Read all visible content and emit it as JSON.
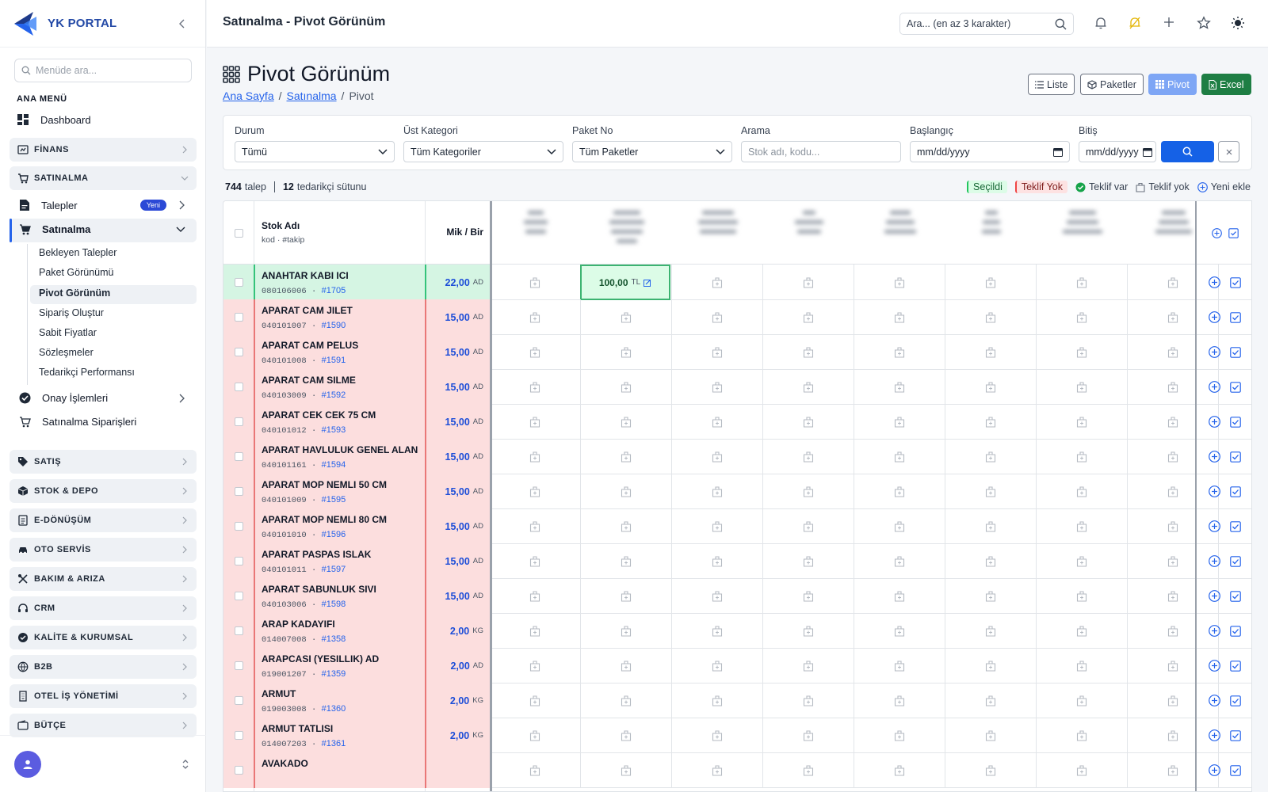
{
  "app": {
    "name": "YK PORTAL",
    "page_title": "Satınalma - Pivot Görünüm"
  },
  "sidebar": {
    "search_placeholder": "Menüde ara...",
    "menu_heading": "ANA MENÜ",
    "dashboard": "Dashboard",
    "sections": [
      {
        "label": "FİNANS",
        "icon": "finance-icon"
      },
      {
        "label": "SATINALMA",
        "icon": "cart-icon",
        "expanded": true
      },
      {
        "label": "SATIŞ",
        "icon": "tag-icon"
      },
      {
        "label": "STOK & DEPO",
        "icon": "box-icon"
      },
      {
        "label": "E-DÖNÜŞÜM",
        "icon": "document-icon"
      },
      {
        "label": "OTO SERVİS",
        "icon": "car-icon"
      },
      {
        "label": "BAKIM & ARIZA",
        "icon": "tools-icon"
      },
      {
        "label": "CRM",
        "icon": "headset-icon"
      },
      {
        "label": "KALİTE & KURUMSAL",
        "icon": "quality-icon"
      },
      {
        "label": "B2B",
        "icon": "globe-icon"
      },
      {
        "label": "OTEL İŞ YÖNETİMİ",
        "icon": "building-icon"
      },
      {
        "label": "BÜTÇE",
        "icon": "wallet-icon"
      }
    ],
    "satinalma": {
      "talepler": "Talepler",
      "talepler_badge": "Yeni",
      "satinalma": "Satınalma",
      "children": [
        "Bekleyen Talepler",
        "Paket Görünümü",
        "Pivot Görünüm",
        "Sipariş Oluştur",
        "Sabit Fiyatlar",
        "Sözleşmeler",
        "Tedarikçi Performansı"
      ],
      "onay": "Onay İşlemleri",
      "siparisler": "Satınalma Siparişleri"
    }
  },
  "topbar": {
    "search_placeholder": "Ara... (en az 3 karakter)"
  },
  "page": {
    "title": "Pivot Görünüm",
    "breadcrumb": [
      "Ana Sayfa",
      "Satınalma",
      "Pivot"
    ],
    "view_buttons": {
      "list": "Liste",
      "packages": "Paketler",
      "pivot": "Pivot",
      "excel": "Excel"
    }
  },
  "filters": {
    "status": {
      "label": "Durum",
      "value": "Tümü"
    },
    "category": {
      "label": "Üst Kategori",
      "value": "Tüm Kategoriler"
    },
    "package": {
      "label": "Paket No",
      "value": "Tüm Paketler"
    },
    "search": {
      "label": "Arama",
      "placeholder": "Stok adı, kodu..."
    },
    "start": {
      "label": "Başlangıç",
      "value": "mm/dd/yyyy"
    },
    "end": {
      "label": "Bitiş",
      "value": "mm/dd/yyyy"
    }
  },
  "summary": {
    "requests": "744",
    "requests_label": "talep",
    "suppliers": "12",
    "suppliers_label": "tedarikçi sütunu"
  },
  "legend": {
    "selected": "Seçildi",
    "no_offer_pill": "Teklif Yok",
    "has_offer": "Teklif var",
    "no_offer": "Teklif yok",
    "add_new": "Yeni ekle"
  },
  "grid": {
    "header": {
      "name": "Stok Adı",
      "name_sub": "kod · #takip",
      "qty": "Mik / Bir"
    },
    "offer": {
      "value": "100,00",
      "currency": "TL"
    },
    "rows": [
      {
        "name": "ANAHTAR KABI ICI",
        "code": "080106006",
        "track": "#1705",
        "qty": "22,00",
        "unit": "AD",
        "state": "selected"
      },
      {
        "name": "APARAT CAM JILET",
        "code": "040101007",
        "track": "#1590",
        "qty": "15,00",
        "unit": "AD",
        "state": "none"
      },
      {
        "name": "APARAT CAM PELUS",
        "code": "040101008",
        "track": "#1591",
        "qty": "15,00",
        "unit": "AD",
        "state": "none"
      },
      {
        "name": "APARAT CAM SILME",
        "code": "040103009",
        "track": "#1592",
        "qty": "15,00",
        "unit": "AD",
        "state": "none"
      },
      {
        "name": "APARAT CEK CEK 75 CM",
        "code": "040101012",
        "track": "#1593",
        "qty": "15,00",
        "unit": "AD",
        "state": "none"
      },
      {
        "name": "APARAT HAVLULUK GENEL ALAN",
        "code": "040101161",
        "track": "#1594",
        "qty": "15,00",
        "unit": "AD",
        "state": "none"
      },
      {
        "name": "APARAT MOP NEMLI 50 CM",
        "code": "040101009",
        "track": "#1595",
        "qty": "15,00",
        "unit": "AD",
        "state": "none"
      },
      {
        "name": "APARAT MOP NEMLI 80 CM",
        "code": "040101010",
        "track": "#1596",
        "qty": "15,00",
        "unit": "AD",
        "state": "none"
      },
      {
        "name": "APARAT PASPAS ISLAK",
        "code": "040101011",
        "track": "#1597",
        "qty": "15,00",
        "unit": "AD",
        "state": "none"
      },
      {
        "name": "APARAT SABUNLUK SIVI",
        "code": "040103006",
        "track": "#1598",
        "qty": "15,00",
        "unit": "AD",
        "state": "none"
      },
      {
        "name": "ARAP KADAYIFI",
        "code": "014007008",
        "track": "#1358",
        "qty": "2,00",
        "unit": "KG",
        "state": "none"
      },
      {
        "name": "ARAPCASI (YESILLIK) AD",
        "code": "019001207",
        "track": "#1359",
        "qty": "2,00",
        "unit": "AD",
        "state": "none"
      },
      {
        "name": "ARMUT",
        "code": "019003008",
        "track": "#1360",
        "qty": "2,00",
        "unit": "KG",
        "state": "none"
      },
      {
        "name": "ARMUT TATLISI",
        "code": "014007203",
        "track": "#1361",
        "qty": "2,00",
        "unit": "KG",
        "state": "none"
      },
      {
        "name": "AVAKADO",
        "code": "",
        "track": "",
        "qty": "",
        "unit": "",
        "state": "none"
      }
    ]
  }
}
